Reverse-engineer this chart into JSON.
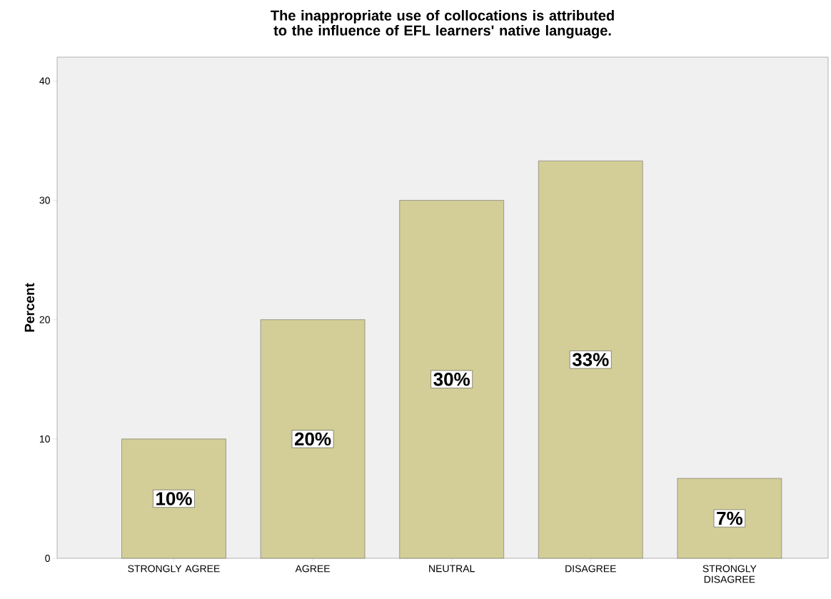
{
  "chart_data": {
    "type": "bar",
    "title": "The inappropriate use of collocations is attributed to the influence of EFL learners' native language.",
    "ylabel": "Percent",
    "categories": [
      "STRONGLY AGREE",
      "AGREE",
      "NEUTRAL",
      "DISAGREE",
      "STRONGLY DISAGREE"
    ],
    "values": [
      10,
      20,
      30,
      33.3,
      6.7
    ],
    "value_labels": [
      "10%",
      "20%",
      "30%",
      "33%",
      "7%"
    ],
    "color": "#d3ce97",
    "ylim": [
      0,
      42
    ],
    "yticks": [
      0,
      10,
      20,
      30,
      40
    ],
    "grid": false
  }
}
